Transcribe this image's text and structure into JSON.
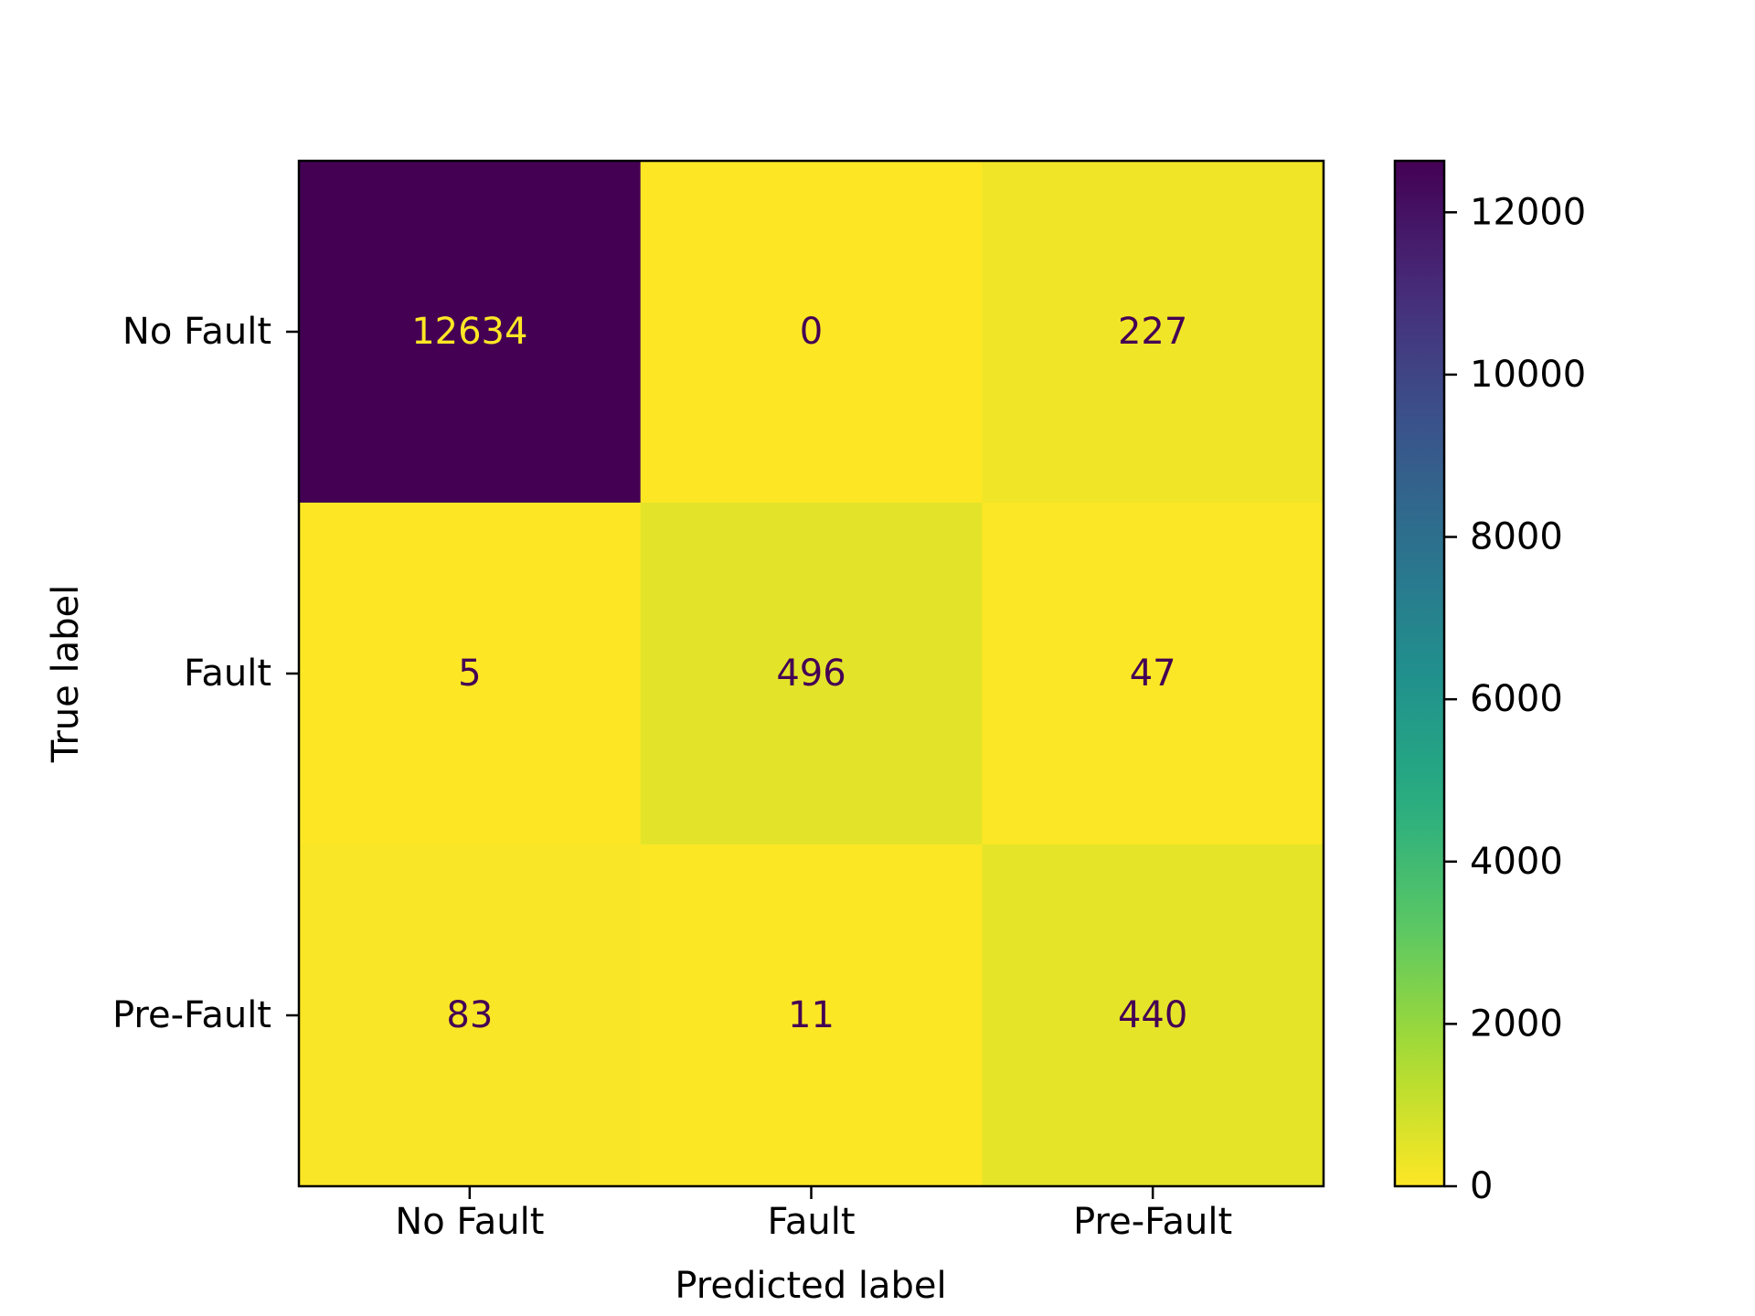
{
  "chart_data": {
    "type": "heatmap",
    "title": "",
    "xlabel": "Predicted label",
    "ylabel": "True label",
    "x_categories": [
      "No Fault",
      "Fault",
      "Pre-Fault"
    ],
    "y_categories": [
      "No Fault",
      "Fault",
      "Pre-Fault"
    ],
    "values": [
      [
        12634,
        0,
        227
      ],
      [
        5,
        496,
        47
      ],
      [
        83,
        11,
        440
      ]
    ],
    "colormap": "viridis_r",
    "colorbar": {
      "min": 0,
      "max": 12634,
      "ticks": [
        0,
        2000,
        4000,
        6000,
        8000,
        10000,
        12000
      ]
    },
    "text_color_dark": "#440154",
    "text_color_light": "#fde725"
  }
}
